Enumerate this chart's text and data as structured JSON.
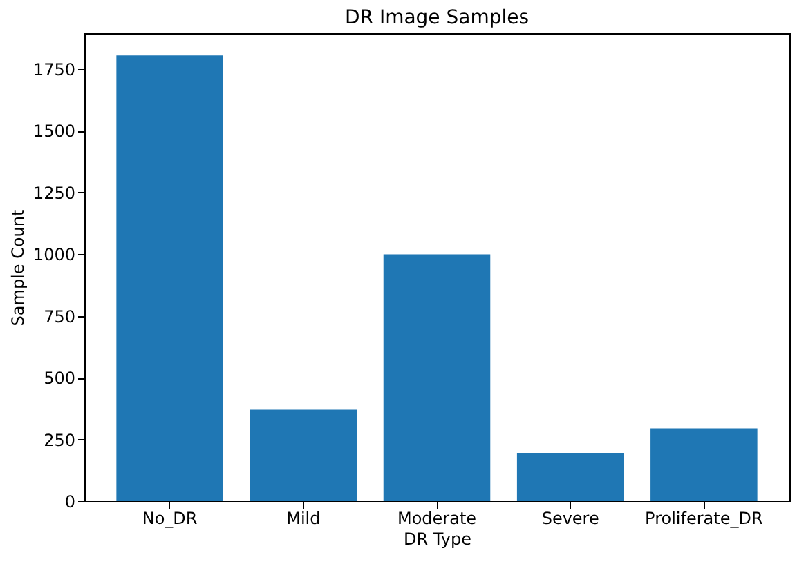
{
  "chart_data": {
    "type": "bar",
    "title": "DR Image Samples",
    "xlabel": "DR Type",
    "ylabel": "Sample Count",
    "categories": [
      "No_DR",
      "Mild",
      "Moderate",
      "Severe",
      "Proliferate_DR"
    ],
    "values": [
      1805,
      370,
      999,
      193,
      295
    ],
    "color": "#1f77b4",
    "ylim": [
      0,
      1895
    ],
    "yticks": [
      0,
      250,
      500,
      750,
      1000,
      1250,
      1500,
      1750
    ],
    "grid": false
  }
}
